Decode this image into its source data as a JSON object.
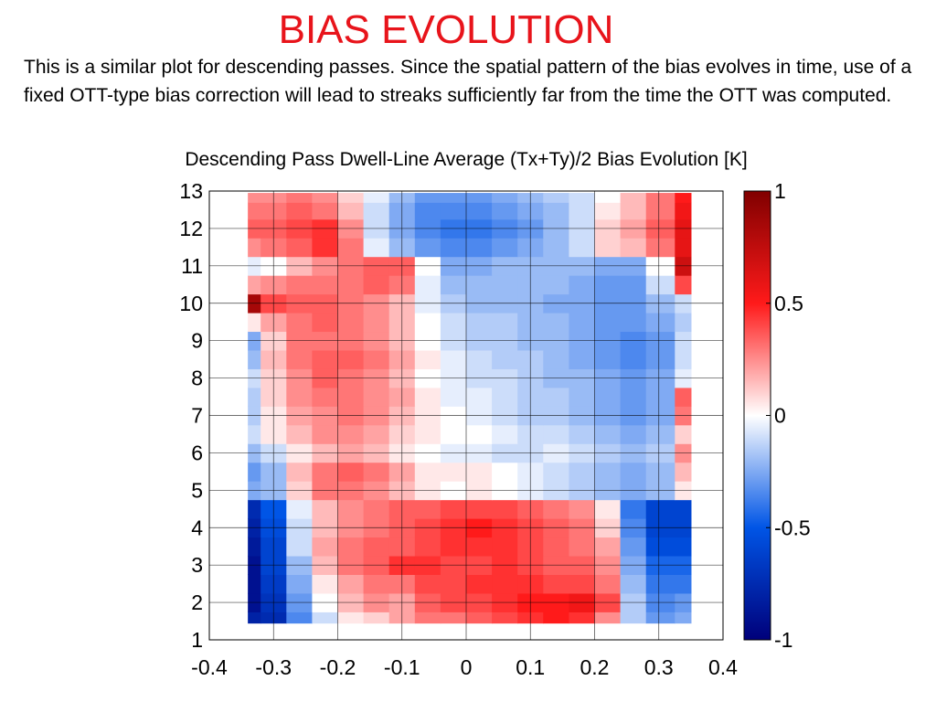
{
  "slide": {
    "title": "BIAS EVOLUTION",
    "body": "This is a similar plot for descending passes. Since the spatial pattern of the bias evolves in time, use of a fixed OTT-type bias correction will lead to streaks sufficiently far from the time the OTT was computed."
  },
  "chart_data": {
    "type": "heatmap",
    "title": "Descending Pass Dwell-Line Average (Tx+Ty)/2 Bias Evolution [K]",
    "xlabel": "",
    "ylabel": "",
    "xlim": [
      -0.4,
      0.4
    ],
    "ylim": [
      1,
      13
    ],
    "x_ticks": [
      "-0.4",
      "-0.3",
      "-0.2",
      "-0.1",
      "0",
      "0.1",
      "0.2",
      "0.3",
      "0.4"
    ],
    "y_ticks": [
      "1",
      "2",
      "3",
      "4",
      "5",
      "6",
      "7",
      "8",
      "9",
      "10",
      "11",
      "12",
      "13"
    ],
    "grid": true,
    "data_extent_x": [
      -0.34,
      0.35
    ],
    "colorbar": {
      "range": [
        -1,
        1
      ],
      "ticks": [
        "1",
        "0.5",
        "0",
        "-0.5",
        "-1"
      ],
      "colormap": [
        "#000080",
        "#0000ff",
        "#ffffff",
        "#ff0000",
        "#800000"
      ]
    },
    "x_samples": [
      -0.34,
      -0.3,
      -0.26,
      -0.22,
      -0.18,
      -0.14,
      -0.1,
      -0.06,
      -0.02,
      0.02,
      0.06,
      0.1,
      0.14,
      0.18,
      0.22,
      0.26,
      0.3,
      0.35
    ],
    "rows": [
      {
        "y": 1.5,
        "values": [
          -0.8,
          -0.75,
          -0.35,
          -0.1,
          0.05,
          0.1,
          0.2,
          0.3,
          0.3,
          0.35,
          0.4,
          0.45,
          0.5,
          0.45,
          0.25,
          -0.15,
          -0.3,
          -0.25
        ]
      },
      {
        "y": 2.0,
        "values": [
          -0.9,
          -0.7,
          -0.3,
          0.0,
          0.15,
          0.25,
          0.2,
          0.35,
          0.4,
          0.4,
          0.45,
          0.5,
          0.5,
          0.55,
          0.4,
          -0.15,
          -0.35,
          -0.3
        ]
      },
      {
        "y": 2.5,
        "values": [
          -0.9,
          -0.65,
          -0.25,
          0.05,
          0.2,
          0.3,
          0.3,
          0.4,
          0.4,
          0.45,
          0.45,
          0.45,
          0.4,
          0.4,
          0.3,
          -0.2,
          -0.4,
          -0.4
        ]
      },
      {
        "y": 3.0,
        "values": [
          -0.9,
          -0.6,
          -0.2,
          0.15,
          0.3,
          0.35,
          0.45,
          0.45,
          0.4,
          0.4,
          0.45,
          0.4,
          0.35,
          0.35,
          0.25,
          -0.25,
          -0.45,
          -0.45
        ]
      },
      {
        "y": 3.5,
        "values": [
          -0.85,
          -0.6,
          -0.1,
          0.2,
          0.3,
          0.35,
          0.35,
          0.4,
          0.45,
          0.45,
          0.45,
          0.4,
          0.35,
          0.3,
          0.2,
          -0.3,
          -0.55,
          -0.55
        ]
      },
      {
        "y": 4.0,
        "values": [
          -0.8,
          -0.55,
          -0.1,
          0.15,
          0.25,
          0.3,
          0.35,
          0.4,
          0.45,
          0.5,
          0.45,
          0.4,
          0.35,
          0.3,
          0.1,
          -0.35,
          -0.6,
          -0.6
        ]
      },
      {
        "y": 4.5,
        "values": [
          -0.75,
          -0.5,
          -0.05,
          0.15,
          0.25,
          0.3,
          0.35,
          0.35,
          0.4,
          0.4,
          0.4,
          0.35,
          0.3,
          0.25,
          0.05,
          -0.4,
          -0.6,
          -0.6
        ]
      },
      {
        "y": 5.0,
        "values": [
          -0.25,
          -0.2,
          0.1,
          0.3,
          0.3,
          0.25,
          0.15,
          0.05,
          0.0,
          0.05,
          0.0,
          -0.05,
          -0.1,
          -0.15,
          -0.2,
          -0.25,
          -0.2,
          0.05
        ]
      },
      {
        "y": 5.5,
        "values": [
          -0.3,
          -0.2,
          0.15,
          0.3,
          0.35,
          0.3,
          0.2,
          0.05,
          0.05,
          0.05,
          0.0,
          -0.05,
          -0.1,
          -0.15,
          -0.2,
          -0.25,
          -0.2,
          0.15
        ]
      },
      {
        "y": 6.0,
        "values": [
          -0.2,
          -0.1,
          0.05,
          0.15,
          0.2,
          0.15,
          0.05,
          0.0,
          -0.05,
          -0.05,
          -0.1,
          -0.1,
          -0.05,
          -0.1,
          -0.15,
          -0.2,
          -0.15,
          0.25
        ]
      },
      {
        "y": 6.5,
        "values": [
          -0.1,
          0.05,
          0.15,
          0.25,
          0.25,
          0.2,
          0.1,
          0.05,
          0.0,
          0.0,
          -0.05,
          -0.1,
          -0.1,
          -0.15,
          -0.2,
          -0.25,
          -0.2,
          0.1
        ]
      },
      {
        "y": 7.0,
        "values": [
          -0.15,
          0.05,
          0.2,
          0.25,
          0.3,
          0.25,
          0.15,
          0.05,
          0.0,
          -0.05,
          -0.1,
          -0.15,
          -0.15,
          -0.2,
          -0.25,
          -0.3,
          -0.25,
          0.3
        ]
      },
      {
        "y": 7.5,
        "values": [
          -0.15,
          0.1,
          0.25,
          0.3,
          0.3,
          0.25,
          0.2,
          0.05,
          -0.05,
          -0.05,
          -0.1,
          -0.15,
          -0.15,
          -0.2,
          -0.25,
          -0.3,
          -0.25,
          0.35
        ]
      },
      {
        "y": 8.0,
        "values": [
          -0.1,
          0.1,
          0.25,
          0.35,
          0.3,
          0.25,
          0.15,
          0.0,
          -0.05,
          -0.1,
          -0.1,
          -0.15,
          -0.2,
          -0.2,
          -0.25,
          -0.3,
          -0.25,
          -0.05
        ]
      },
      {
        "y": 8.5,
        "values": [
          -0.2,
          0.15,
          0.3,
          0.35,
          0.35,
          0.3,
          0.2,
          0.05,
          -0.05,
          -0.1,
          -0.15,
          -0.15,
          -0.2,
          -0.25,
          -0.3,
          -0.35,
          -0.3,
          -0.1
        ]
      },
      {
        "y": 9.0,
        "values": [
          -0.25,
          0.1,
          0.3,
          0.3,
          0.3,
          0.25,
          0.15,
          0.0,
          -0.1,
          -0.15,
          -0.15,
          -0.2,
          -0.2,
          -0.25,
          -0.3,
          -0.35,
          -0.3,
          -0.1
        ]
      },
      {
        "y": 9.5,
        "values": [
          0.05,
          0.2,
          0.3,
          0.35,
          0.3,
          0.25,
          0.15,
          0.0,
          -0.1,
          -0.15,
          -0.15,
          -0.2,
          -0.2,
          -0.25,
          -0.3,
          -0.3,
          -0.25,
          -0.15
        ]
      },
      {
        "y": 10.0,
        "values": [
          0.85,
          0.4,
          0.35,
          0.35,
          0.3,
          0.25,
          0.15,
          -0.05,
          -0.15,
          -0.2,
          -0.2,
          -0.2,
          -0.25,
          -0.25,
          -0.3,
          -0.3,
          -0.2,
          -0.1
        ]
      },
      {
        "y": 10.5,
        "values": [
          0.2,
          0.25,
          0.3,
          0.3,
          0.3,
          0.35,
          0.3,
          -0.05,
          -0.2,
          -0.2,
          -0.2,
          -0.2,
          -0.2,
          -0.25,
          -0.3,
          -0.3,
          -0.1,
          0.4
        ]
      },
      {
        "y": 11.0,
        "values": [
          -0.05,
          0.0,
          0.15,
          0.25,
          0.3,
          0.35,
          0.35,
          0.0,
          -0.25,
          -0.25,
          -0.2,
          -0.2,
          -0.2,
          -0.2,
          -0.25,
          -0.25,
          0.0,
          0.7
        ]
      },
      {
        "y": 11.5,
        "values": [
          0.25,
          0.3,
          0.35,
          0.45,
          0.3,
          -0.05,
          -0.2,
          -0.3,
          -0.35,
          -0.35,
          -0.3,
          -0.25,
          -0.2,
          -0.1,
          0.1,
          0.15,
          0.3,
          0.6
        ]
      },
      {
        "y": 12.0,
        "values": [
          0.35,
          0.35,
          0.4,
          0.45,
          0.25,
          -0.1,
          -0.25,
          -0.35,
          -0.4,
          -0.4,
          -0.35,
          -0.3,
          -0.2,
          -0.1,
          0.1,
          0.2,
          0.35,
          0.6
        ]
      },
      {
        "y": 12.5,
        "values": [
          0.3,
          0.3,
          0.35,
          0.3,
          0.15,
          -0.1,
          -0.25,
          -0.35,
          -0.35,
          -0.35,
          -0.3,
          -0.25,
          -0.2,
          -0.1,
          0.05,
          0.15,
          0.3,
          0.55
        ]
      },
      {
        "y": 12.9,
        "values": [
          0.25,
          0.25,
          0.3,
          0.25,
          0.1,
          -0.05,
          -0.2,
          -0.3,
          -0.3,
          -0.3,
          -0.25,
          -0.2,
          -0.15,
          -0.1,
          0.0,
          0.15,
          0.3,
          0.5
        ]
      }
    ]
  }
}
